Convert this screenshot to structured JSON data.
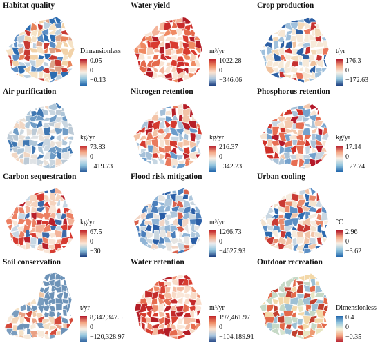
{
  "panels": [
    {
      "title": "Habitat quality",
      "unit": "Dimensionless",
      "max": "0.05",
      "zero": "0",
      "min": "−0.13",
      "cmap": [
        "#b2182b",
        "#f4a582",
        "#f7f0e6",
        "#92c5de",
        "#2166ac"
      ],
      "map_colors": [
        "#f2d2a8",
        "#e8855b",
        "#c73a32",
        "#bdd0df",
        "#5a8cc3",
        "#f6e3c6",
        "#2d6db1",
        "#dca58a"
      ]
    },
    {
      "title": "Water yield",
      "unit": "m³/yr",
      "max": "1022.28",
      "zero": "0",
      "min": "−346.06",
      "cmap": [
        "#c0242a",
        "#ef8a62",
        "#fbe2d0",
        "#a9c6df",
        "#1d3f80"
      ],
      "map_colors": [
        "#d93b2f",
        "#ef8a62",
        "#f4b49a",
        "#c92b2b",
        "#f6d0b8",
        "#e56a4c",
        "#b31d26",
        "#f9e4d4"
      ]
    },
    {
      "title": "Crop production",
      "unit": "t/yr",
      "max": "176.3",
      "zero": "0",
      "min": "−172.63",
      "cmap": [
        "#b2182b",
        "#f4a582",
        "#f7f0e6",
        "#92c5de",
        "#1d3f80"
      ],
      "map_colors": [
        "#f4d9b8",
        "#e9755a",
        "#f6e7d4",
        "#c63230",
        "#9fc0dc",
        "#f1c29d",
        "#2d5fa3",
        "#f7ead9"
      ]
    },
    {
      "title": "Air purification",
      "unit": "kg/yr",
      "max": "73.83",
      "zero": "0",
      "min": "−419.73",
      "cmap": [
        "#c0242a",
        "#f4a582",
        "#e9ecef",
        "#92c5de",
        "#2b5d9b"
      ],
      "map_colors": [
        "#c9d6e0",
        "#dfe3e6",
        "#aec6d9",
        "#6f9cc6",
        "#e9e1d9",
        "#3f77b2",
        "#f1d7c4",
        "#bccad6"
      ]
    },
    {
      "title": "Nitrogen retention",
      "unit": "kg/yr",
      "max": "216.37",
      "zero": "0",
      "min": "−342.23",
      "cmap": [
        "#b2182b",
        "#f4a582",
        "#f7f0e6",
        "#92c5de",
        "#2166ac"
      ],
      "map_colors": [
        "#d43a2f",
        "#e97a5c",
        "#f3c3a6",
        "#c6d6e2",
        "#6a9ccb",
        "#b71f28",
        "#f6e3d3",
        "#a5c0d8"
      ]
    },
    {
      "title": "Phosphorus retention",
      "unit": "kg/yr",
      "max": "17.14",
      "zero": "0",
      "min": "−27.74",
      "cmap": [
        "#b2182b",
        "#f4a582",
        "#f7f0e6",
        "#92c5de",
        "#2166ac"
      ],
      "map_colors": [
        "#cf3129",
        "#e76e53",
        "#f4c8ad",
        "#c7d5e1",
        "#75a2cd",
        "#b4192a",
        "#f7e4d3",
        "#a9c2d8"
      ]
    },
    {
      "title": "Carbon sequestration",
      "unit": "kg/yr",
      "max": "67.5",
      "zero": "0",
      "min": "−30",
      "cmap": [
        "#c0242a",
        "#f4a582",
        "#fbe7d8",
        "#92c5de",
        "#1d3f80"
      ],
      "map_colors": [
        "#d63b31",
        "#ec8063",
        "#f6d3bd",
        "#b8202a",
        "#f3b298",
        "#c7d7e4",
        "#3d6aa9",
        "#f9e5d6"
      ]
    },
    {
      "title": "Flood risk mitigation",
      "unit": "m³/yr",
      "max": "1266.73",
      "zero": "0",
      "min": "−4627.93",
      "cmap": [
        "#c0242a",
        "#f4a582",
        "#e9ecef",
        "#92c5de",
        "#1d3f80"
      ],
      "map_colors": [
        "#c9d6e0",
        "#8fb4d6",
        "#4b7fbb",
        "#e6e5e3",
        "#d8604b",
        "#2a5ea6",
        "#f2d5c4",
        "#aec7dc"
      ]
    },
    {
      "title": "Urban cooling",
      "unit": "°C",
      "max": "2.96",
      "zero": "0",
      "min": "−3.62",
      "cmap": [
        "#b2182b",
        "#f4a582",
        "#f7f0e6",
        "#92c5de",
        "#2166ac"
      ],
      "map_colors": [
        "#f3e3cf",
        "#e98a6b",
        "#c93a34",
        "#c9d7e2",
        "#5c8fc5",
        "#f7ecdf",
        "#2e6aae",
        "#f1c4a8"
      ]
    },
    {
      "title": "Soil conservation",
      "unit": "t/yr",
      "max": "8,342,347.5",
      "zero": "0",
      "min": "−120,328.97",
      "cmap": [
        "#b2182b",
        "#f4a582",
        "#f7f0e6",
        "#92c5de",
        "#2b5d9b"
      ],
      "map_colors": [
        "#f5e2c8",
        "#6d93b8",
        "#e9a083",
        "#f4d6b8",
        "#d44a3a",
        "#f7eadb",
        "#7a9dbf",
        "#efc7a7"
      ]
    },
    {
      "title": "Water retention",
      "unit": "m³/yr",
      "max": "197,461.97",
      "zero": "0",
      "min": "−104,189.91",
      "cmap": [
        "#c0242a",
        "#ef8a62",
        "#fbe2d0",
        "#a9c6df",
        "#1d3f80"
      ],
      "map_colors": [
        "#d73f31",
        "#ee8b6b",
        "#f5bca2",
        "#c42b2b",
        "#f8dac6",
        "#e66b4e",
        "#b31d26",
        "#fae7d9"
      ]
    },
    {
      "title": "Outdoor recreation",
      "unit": "Dimensionless",
      "max": "0.4",
      "zero": "0",
      "min": "−0.35",
      "cmap": [
        "#2166ac",
        "#92c5de",
        "#f7f4dc",
        "#f4a582",
        "#b2182b"
      ],
      "map_colors": [
        "#e8e6c2",
        "#c6d9c6",
        "#ee9a72",
        "#f3d8a8",
        "#9dc0d4",
        "#e36a4a",
        "#d7e4cf",
        "#c2402f"
      ]
    }
  ]
}
